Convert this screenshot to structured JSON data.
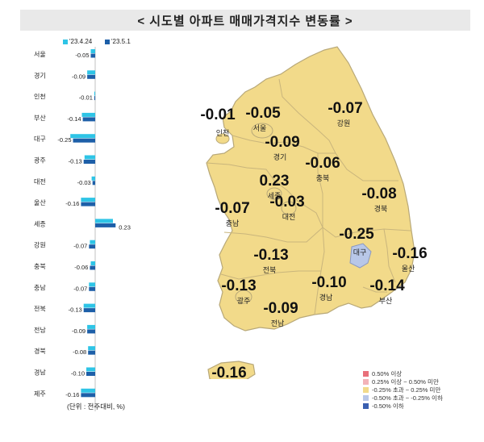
{
  "title": "< 시도별 아파트 매매가격지수 변동률 >",
  "note": "(단위 : 전주대비, %)",
  "colors": {
    "series_prev": "#2ec4e6",
    "series_curr": "#1d5fa8",
    "map_fill": "#f2da8a",
    "map_stroke": "#b8a878",
    "daegu_fill": "#b8c7e8"
  },
  "chart_data": {
    "type": "bar",
    "orientation": "horizontal",
    "categories": [
      "서울",
      "경기",
      "인천",
      "부산",
      "대구",
      "광주",
      "대전",
      "울산",
      "세종",
      "강원",
      "충북",
      "충남",
      "전북",
      "전남",
      "경북",
      "경남",
      "제주"
    ],
    "series": [
      {
        "name": "'23.4.24",
        "values": [
          -0.05,
          -0.09,
          -0.01,
          -0.15,
          -0.28,
          -0.12,
          -0.04,
          -0.16,
          0.2,
          -0.06,
          -0.05,
          -0.07,
          -0.13,
          -0.09,
          -0.08,
          -0.1,
          -0.16
        ]
      },
      {
        "name": "'23.5.1",
        "values": [
          -0.05,
          -0.09,
          -0.01,
          -0.14,
          -0.25,
          -0.13,
          -0.03,
          -0.16,
          0.23,
          -0.07,
          -0.06,
          -0.07,
          -0.13,
          -0.09,
          -0.08,
          -0.1,
          -0.16
        ]
      }
    ],
    "data_labels": [
      "-0.05",
      "-0.09",
      "-0.01",
      "-0.14",
      "-0.25",
      "-0.13",
      "-0.03",
      "-0.16",
      "0.23",
      "-0.07",
      "-0.06",
      "-0.07",
      "-0.13",
      "-0.09",
      "-0.08",
      "-0.10",
      "-0.16"
    ],
    "xlim": [
      -0.3,
      0.3
    ]
  },
  "map": {
    "regions": [
      {
        "name": "인천",
        "value": "-0.01"
      },
      {
        "name": "서울",
        "value": "-0.05"
      },
      {
        "name": "강원",
        "value": "-0.07"
      },
      {
        "name": "경기",
        "value": "-0.09"
      },
      {
        "name": "충북",
        "value": "-0.06"
      },
      {
        "name": "세종",
        "value": "0.23"
      },
      {
        "name": "대전",
        "value": "-0.03"
      },
      {
        "name": "경북",
        "value": "-0.08"
      },
      {
        "name": "충남",
        "value": "-0.07"
      },
      {
        "name": "대구",
        "value": "-0.25"
      },
      {
        "name": "울산",
        "value": "-0.16"
      },
      {
        "name": "전북",
        "value": "-0.13"
      },
      {
        "name": "경남",
        "value": "-0.10"
      },
      {
        "name": "부산",
        "value": "-0.14"
      },
      {
        "name": "광주",
        "value": "-0.13"
      },
      {
        "name": "전남",
        "value": "-0.09"
      },
      {
        "name": "제주",
        "value": "-0.16"
      }
    ],
    "legend": [
      {
        "label": "0.50% 이상",
        "color": "#e8707a"
      },
      {
        "label": "0.25% 이상 ~ 0.50% 미만",
        "color": "#f3b3b8"
      },
      {
        "label": "-0.25% 초과 ~ 0.25% 미만",
        "color": "#f2da8a"
      },
      {
        "label": "-0.50% 초과 ~ -0.25% 이하",
        "color": "#b8c7e8"
      },
      {
        "label": "-0.50% 이하",
        "color": "#3a5fb0"
      }
    ]
  }
}
